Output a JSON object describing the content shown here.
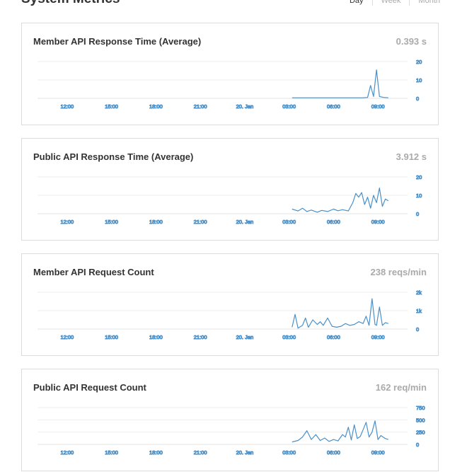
{
  "page": {
    "title": "System Metrics"
  },
  "range": {
    "options": [
      "Day",
      "Week",
      "Month"
    ],
    "selected": "Day"
  },
  "colors": {
    "line": "#4a90c9",
    "grid": "#eeeeee",
    "muted": "#999999"
  },
  "x_tick_labels": [
    "12:00",
    "15:00",
    "18:00",
    "21:00",
    "20. Jan",
    "03:00",
    "06:00",
    "09:00"
  ],
  "cards": [
    {
      "title": "Member API Response Time (Average)",
      "value": "0.393 s"
    },
    {
      "title": "Public API Response Time (Average)",
      "value": "3.912 s"
    },
    {
      "title": "Member API Request Count",
      "value": "238 reqs/min"
    },
    {
      "title": "Public API Request Count",
      "value": "162 req/min"
    }
  ],
  "chart_data": [
    {
      "type": "line",
      "title": "Member API Response Time (Average)",
      "x_unit": "hours since 10:00",
      "xlim": [
        0,
        25
      ],
      "ylim": [
        0,
        20
      ],
      "y_tick_labels": [
        "20",
        "10",
        "0"
      ],
      "y_tick_values": [
        20,
        10,
        0
      ],
      "x": [
        17.2,
        17.6,
        18.0,
        18.5,
        19.0,
        19.5,
        20.0,
        20.5,
        21.0,
        21.5,
        22.0,
        22.3,
        22.5,
        22.7,
        22.9,
        23.1,
        23.4,
        23.7
      ],
      "y": [
        0.3,
        0.3,
        0.3,
        0.3,
        0.3,
        0.3,
        0.3,
        0.3,
        0.3,
        0.3,
        0.3,
        0.5,
        7,
        1,
        15.5,
        1,
        0.5,
        0.3
      ]
    },
    {
      "type": "line",
      "title": "Public API Response Time (Average)",
      "x_unit": "hours since 10:00",
      "xlim": [
        0,
        25
      ],
      "ylim": [
        0,
        20
      ],
      "y_tick_labels": [
        "20",
        "10",
        "0"
      ],
      "y_tick_values": [
        20,
        10,
        0
      ],
      "x": [
        17.2,
        17.6,
        17.9,
        18.2,
        18.5,
        18.9,
        19.2,
        19.6,
        20.0,
        20.3,
        20.6,
        21.0,
        21.3,
        21.5,
        21.7,
        21.9,
        22.1,
        22.3,
        22.5,
        22.7,
        22.9,
        23.1,
        23.3,
        23.5,
        23.7
      ],
      "y": [
        2.5,
        1.5,
        3,
        1.2,
        2,
        0.8,
        1.8,
        1.2,
        2.5,
        1.6,
        2.2,
        1.5,
        6,
        11,
        9,
        11.5,
        5,
        9,
        3,
        10,
        6,
        14,
        4,
        8,
        7
      ]
    },
    {
      "type": "line",
      "title": "Member API Request Count",
      "x_unit": "hours since 10:00",
      "xlim": [
        0,
        25
      ],
      "ylim": [
        0,
        2000
      ],
      "y_tick_labels": [
        "2k",
        "1k",
        "0"
      ],
      "y_tick_values": [
        2000,
        1000,
        0
      ],
      "x": [
        17.2,
        17.4,
        17.6,
        17.9,
        18.1,
        18.3,
        18.6,
        18.9,
        19.1,
        19.3,
        19.6,
        19.9,
        20.2,
        20.5,
        20.8,
        21.1,
        21.4,
        21.7,
        22.0,
        22.2,
        22.4,
        22.6,
        22.8,
        22.9,
        23.1,
        23.3,
        23.5,
        23.7
      ],
      "y": [
        100,
        800,
        50,
        200,
        600,
        100,
        500,
        250,
        400,
        200,
        600,
        150,
        100,
        150,
        300,
        200,
        250,
        400,
        300,
        700,
        200,
        1650,
        250,
        200,
        1200,
        200,
        350,
        300
      ]
    },
    {
      "type": "line",
      "title": "Public API Request Count",
      "x_unit": "hours since 10:00",
      "xlim": [
        0,
        25
      ],
      "ylim": [
        0,
        750
      ],
      "y_tick_labels": [
        "750",
        "500",
        "250",
        "0"
      ],
      "y_tick_values": [
        750,
        500,
        250,
        0
      ],
      "x": [
        17.2,
        17.6,
        17.9,
        18.2,
        18.5,
        18.8,
        19.1,
        19.4,
        19.7,
        20.0,
        20.3,
        20.6,
        20.8,
        21.0,
        21.2,
        21.4,
        21.6,
        21.8,
        22.0,
        22.2,
        22.4,
        22.6,
        22.8,
        23.0,
        23.2,
        23.5,
        23.7
      ],
      "y": [
        50,
        80,
        150,
        280,
        100,
        200,
        80,
        130,
        60,
        100,
        70,
        200,
        150,
        350,
        90,
        400,
        120,
        160,
        300,
        450,
        150,
        250,
        480,
        100,
        180,
        120,
        100
      ]
    }
  ]
}
